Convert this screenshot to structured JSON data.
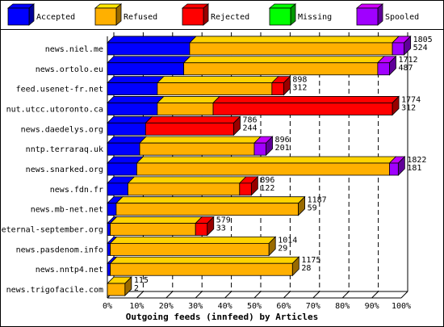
{
  "chart_data": {
    "type": "bar",
    "stacked": true,
    "orientation": "horizontal",
    "xlabel": "Outgoing feeds (innfeed) by Articles",
    "x_ticks": [
      "0%",
      "10%",
      "20%",
      "30%",
      "40%",
      "50%",
      "60%",
      "70%",
      "80%",
      "90%",
      "100%"
    ],
    "xlim": [
      0,
      100
    ],
    "grid": true,
    "legend_position": "top",
    "categories": [
      "news.niel.me",
      "news.ortolo.eu",
      "feed.usenet-fr.net",
      "nut.utcc.utoronto.ca",
      "news.daedelys.org",
      "nntp.terraraq.uk",
      "news.snarked.org",
      "news.fdn.fr",
      "news.mb-net.net",
      "eternal-september.org",
      "news.pasdenom.info",
      "news.nntp4.net",
      "news.trigofacile.com"
    ],
    "series": [
      {
        "name": "Accepted",
        "color": "#0000ff",
        "values": [
          28,
          26,
          17,
          17,
          13,
          11,
          10,
          7,
          3,
          1,
          1,
          1,
          0
        ]
      },
      {
        "name": "Refused",
        "color": "#ffb000",
        "values": [
          69,
          66,
          39,
          19,
          0,
          39,
          86,
          38,
          62,
          29,
          54,
          62,
          6
        ]
      },
      {
        "name": "Rejected",
        "color": "#ff0000",
        "values": [
          0,
          0,
          4,
          61,
          30,
          0,
          0,
          4,
          0,
          4,
          0,
          0,
          0
        ]
      },
      {
        "name": "Missing",
        "color": "#00ff00",
        "values": [
          0,
          0,
          0,
          0,
          0,
          0,
          0,
          0,
          0,
          0,
          0,
          0,
          0
        ]
      },
      {
        "name": "Spooled",
        "color": "#a000ff",
        "values": [
          4,
          4,
          0,
          0,
          0,
          4,
          3,
          0,
          0,
          0,
          0,
          0,
          0
        ]
      }
    ],
    "offered": [
      "1805",
      "1712",
      "898",
      "1774",
      "786",
      "896",
      "1822",
      "896",
      "1187",
      "579",
      "1014",
      "1175",
      "115"
    ],
    "accepted": [
      "524",
      "487",
      "312",
      "312",
      "244",
      "201",
      "181",
      "122",
      "59",
      "33",
      "29",
      "28",
      "2"
    ]
  }
}
